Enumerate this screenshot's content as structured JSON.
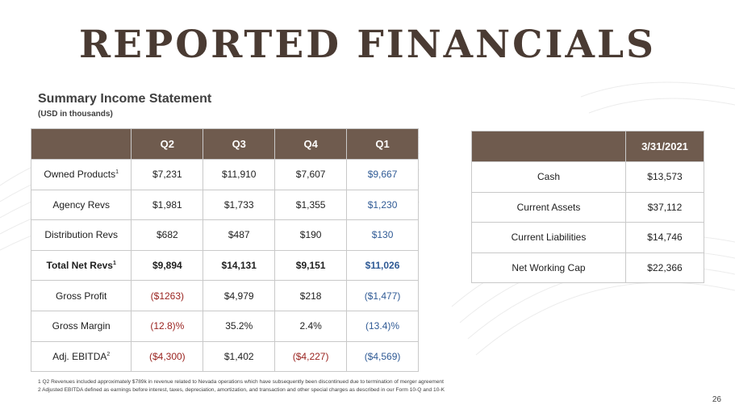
{
  "title": "REPORTED FINANCIALS",
  "subtitle": "Summary Income Statement",
  "subnote": "(USD in thousands)",
  "income_table": {
    "columns": [
      "",
      "Q2",
      "Q3",
      "Q4",
      "Q1"
    ],
    "rows": [
      {
        "label": "Owned Products",
        "sup": "1",
        "values": [
          "$7,231",
          "$11,910",
          "$7,607",
          "$9,667"
        ]
      },
      {
        "label": "Agency Revs",
        "sup": "",
        "values": [
          "$1,981",
          "$1,733",
          "$1,355",
          "$1,230"
        ]
      },
      {
        "label": "Distribution Revs",
        "sup": "",
        "values": [
          "$682",
          "$487",
          "$190",
          "$130"
        ]
      },
      {
        "label": "Total Net Revs",
        "sup": "1",
        "values": [
          "$9,894",
          "$14,131",
          "$9,151",
          "$11,026"
        ]
      },
      {
        "label": "Gross Profit",
        "sup": "",
        "values": [
          "($1263)",
          "$4,979",
          "$218",
          "($1,477)"
        ]
      },
      {
        "label": "Gross Margin",
        "sup": "",
        "values": [
          "(12.8)%",
          "35.2%",
          "2.4%",
          "(13.4)%"
        ]
      },
      {
        "label": "Adj. EBITDA",
        "sup": "2",
        "values": [
          "($4,300)",
          "$1,402",
          "($4,227)",
          "($4,569)"
        ]
      }
    ]
  },
  "balance_table": {
    "columns": [
      "",
      "3/31/2021"
    ],
    "rows": [
      {
        "label": "Cash",
        "value": "$13,573"
      },
      {
        "label": "Current Assets",
        "value": "$37,112"
      },
      {
        "label": "Current Liabilities",
        "value": "$14,746"
      },
      {
        "label": "Net Working Cap",
        "value": "$22,366"
      }
    ]
  },
  "footnotes": [
    "1 Q2 Revenues included approximately $789k in revenue related to Nevada operations which have subsequently been discontinued due to termination of merger agreement",
    "2 Adjusted EBITDA defined as earnings before interest, taxes, depreciation, amortization, and transaction and other special charges as described in our Form 10-Q and 10-K"
  ],
  "page_number": "26",
  "colors": {
    "header": "#6f5b4e",
    "title": "#4a3b33",
    "negative": "#9a2420",
    "latest": "#2f5a95"
  }
}
